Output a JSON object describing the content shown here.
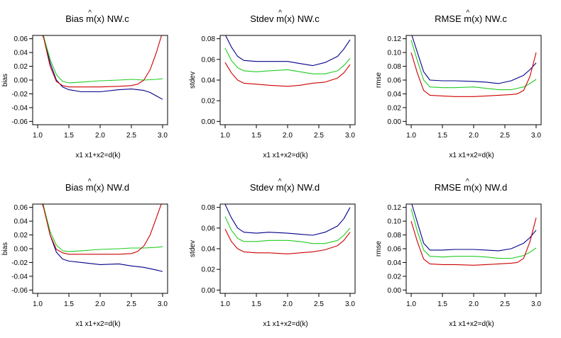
{
  "colors": {
    "blue": "#00008b",
    "green": "#22cc22",
    "red": "#cc0000",
    "axis": "#000000"
  },
  "chart_data": [
    {
      "type": "line",
      "title": {
        "prefix": "Bias",
        "m": "m",
        "x": "(x)",
        "method": "NW.c"
      },
      "xlabel": "x1    x1+x2=d(k)",
      "ylabel": "bias",
      "xlim": [
        1.0,
        3.0
      ],
      "ylim": [
        -0.06,
        0.06
      ],
      "xticks": [
        1.0,
        1.5,
        2.0,
        2.5,
        3.0
      ],
      "xtick_labels": [
        "1.0",
        "1.5",
        "2.0",
        "2.5",
        "3.0"
      ],
      "yticks": [
        -0.06,
        -0.04,
        -0.02,
        0.0,
        0.02,
        0.04,
        0.06
      ],
      "ytick_labels": [
        "-0.06",
        "-0.04",
        "-0.02",
        "0.00",
        "0.02",
        "0.04",
        "0.06"
      ],
      "series": [
        {
          "name": "blue",
          "x": [
            1.0,
            1.1,
            1.2,
            1.3,
            1.4,
            1.5,
            1.7,
            2.0,
            2.3,
            2.5,
            2.7,
            2.8,
            2.9,
            3.0
          ],
          "y": [
            0.1,
            0.062,
            0.025,
            0.0,
            -0.01,
            -0.014,
            -0.017,
            -0.017,
            -0.014,
            -0.013,
            -0.015,
            -0.018,
            -0.023,
            -0.028
          ]
        },
        {
          "name": "green",
          "x": [
            1.0,
            1.1,
            1.2,
            1.3,
            1.4,
            1.5,
            1.7,
            2.0,
            2.3,
            2.5,
            2.7,
            2.9,
            3.0
          ],
          "y": [
            0.09,
            0.062,
            0.03,
            0.008,
            -0.002,
            -0.004,
            -0.003,
            -0.001,
            0.0,
            0.001,
            0.0,
            0.001,
            0.002
          ]
        },
        {
          "name": "red",
          "x": [
            1.0,
            1.1,
            1.2,
            1.3,
            1.4,
            1.5,
            1.7,
            2.0,
            2.3,
            2.5,
            2.6,
            2.7,
            2.8,
            2.9,
            3.0
          ],
          "y": [
            0.085,
            0.06,
            0.02,
            -0.002,
            -0.008,
            -0.01,
            -0.01,
            -0.01,
            -0.009,
            -0.008,
            -0.006,
            0.0,
            0.015,
            0.04,
            0.07
          ]
        }
      ]
    },
    {
      "type": "line",
      "title": {
        "prefix": "Stdev",
        "m": "m",
        "x": "(x)",
        "method": "NW.c"
      },
      "xlabel": "x1    x1+x2=d(k)",
      "ylabel": "stdev",
      "xlim": [
        1.0,
        3.0
      ],
      "ylim": [
        0.0,
        0.08
      ],
      "xticks": [
        1.0,
        1.5,
        2.0,
        2.5,
        3.0
      ],
      "xtick_labels": [
        "1.0",
        "1.5",
        "2.0",
        "2.5",
        "3.0"
      ],
      "yticks": [
        0.0,
        0.02,
        0.04,
        0.06,
        0.08
      ],
      "ytick_labels": [
        "0.00",
        "0.02",
        "0.04",
        "0.06",
        "0.08"
      ],
      "series": [
        {
          "name": "blue",
          "x": [
            1.0,
            1.1,
            1.2,
            1.3,
            1.5,
            1.7,
            2.0,
            2.2,
            2.4,
            2.6,
            2.8,
            2.9,
            3.0
          ],
          "y": [
            0.084,
            0.072,
            0.063,
            0.059,
            0.058,
            0.058,
            0.058,
            0.056,
            0.054,
            0.057,
            0.063,
            0.07,
            0.079
          ]
        },
        {
          "name": "green",
          "x": [
            1.0,
            1.1,
            1.2,
            1.3,
            1.5,
            1.7,
            2.0,
            2.2,
            2.4,
            2.6,
            2.8,
            2.9,
            3.0
          ],
          "y": [
            0.071,
            0.059,
            0.052,
            0.049,
            0.048,
            0.049,
            0.05,
            0.048,
            0.046,
            0.046,
            0.049,
            0.054,
            0.061
          ]
        },
        {
          "name": "red",
          "x": [
            1.0,
            1.1,
            1.2,
            1.3,
            1.5,
            1.7,
            2.0,
            2.2,
            2.4,
            2.6,
            2.8,
            2.9,
            3.0
          ],
          "y": [
            0.057,
            0.047,
            0.04,
            0.037,
            0.036,
            0.035,
            0.034,
            0.035,
            0.037,
            0.038,
            0.042,
            0.047,
            0.055
          ]
        }
      ]
    },
    {
      "type": "line",
      "title": {
        "prefix": "RMSE",
        "m": "m",
        "x": "(x)",
        "method": "NW.c"
      },
      "xlabel": "x1    x1+x2=d(k)",
      "ylabel": "rmse",
      "xlim": [
        1.0,
        3.0
      ],
      "ylim": [
        0.0,
        0.12
      ],
      "xticks": [
        1.0,
        1.5,
        2.0,
        2.5,
        3.0
      ],
      "xtick_labels": [
        "1.0",
        "1.5",
        "2.0",
        "2.5",
        "3.0"
      ],
      "yticks": [
        0.0,
        0.02,
        0.04,
        0.06,
        0.08,
        0.1,
        0.12
      ],
      "ytick_labels": [
        "0.00",
        "0.02",
        "0.04",
        "0.06",
        "0.08",
        "0.10",
        "0.12"
      ],
      "series": [
        {
          "name": "blue",
          "x": [
            1.0,
            1.1,
            1.2,
            1.3,
            1.5,
            1.7,
            2.0,
            2.2,
            2.4,
            2.6,
            2.8,
            2.9,
            3.0
          ],
          "y": [
            0.128,
            0.1,
            0.072,
            0.06,
            0.059,
            0.059,
            0.058,
            0.057,
            0.055,
            0.059,
            0.067,
            0.075,
            0.085
          ]
        },
        {
          "name": "green",
          "x": [
            1.0,
            1.1,
            1.2,
            1.3,
            1.5,
            1.7,
            2.0,
            2.2,
            2.4,
            2.6,
            2.8,
            2.9,
            3.0
          ],
          "y": [
            0.118,
            0.088,
            0.06,
            0.05,
            0.049,
            0.049,
            0.05,
            0.048,
            0.046,
            0.046,
            0.05,
            0.055,
            0.061
          ]
        },
        {
          "name": "red",
          "x": [
            1.0,
            1.1,
            1.2,
            1.3,
            1.5,
            1.7,
            2.0,
            2.2,
            2.4,
            2.6,
            2.7,
            2.8,
            2.9,
            3.0
          ],
          "y": [
            0.1,
            0.07,
            0.045,
            0.038,
            0.037,
            0.036,
            0.036,
            0.037,
            0.038,
            0.039,
            0.04,
            0.045,
            0.065,
            0.1
          ]
        }
      ]
    },
    {
      "type": "line",
      "title": {
        "prefix": "Bias",
        "m": "m",
        "x": "(x)",
        "method": "NW.d"
      },
      "xlabel": "x1    x1+x2=d(k)",
      "ylabel": "bias",
      "xlim": [
        1.0,
        3.0
      ],
      "ylim": [
        -0.06,
        0.06
      ],
      "xticks": [
        1.0,
        1.5,
        2.0,
        2.5,
        3.0
      ],
      "xtick_labels": [
        "1.0",
        "1.5",
        "2.0",
        "2.5",
        "3.0"
      ],
      "yticks": [
        -0.06,
        -0.04,
        -0.02,
        0.0,
        0.02,
        0.04,
        0.06
      ],
      "ytick_labels": [
        "-0.06",
        "-0.04",
        "-0.02",
        "0.00",
        "0.02",
        "0.04",
        "0.06"
      ],
      "series": [
        {
          "name": "blue",
          "x": [
            1.0,
            1.1,
            1.2,
            1.3,
            1.4,
            1.5,
            1.7,
            2.0,
            2.3,
            2.5,
            2.7,
            2.9,
            3.0
          ],
          "y": [
            0.1,
            0.06,
            0.02,
            -0.005,
            -0.015,
            -0.018,
            -0.02,
            -0.023,
            -0.022,
            -0.025,
            -0.027,
            -0.031,
            -0.033
          ]
        },
        {
          "name": "green",
          "x": [
            1.0,
            1.1,
            1.2,
            1.3,
            1.4,
            1.5,
            1.7,
            2.0,
            2.3,
            2.5,
            2.7,
            2.9,
            3.0
          ],
          "y": [
            0.09,
            0.06,
            0.025,
            0.005,
            -0.003,
            -0.004,
            -0.003,
            -0.001,
            0.0,
            0.001,
            0.001,
            0.002,
            0.003
          ]
        },
        {
          "name": "red",
          "x": [
            1.0,
            1.1,
            1.2,
            1.3,
            1.4,
            1.5,
            1.7,
            2.0,
            2.3,
            2.5,
            2.6,
            2.7,
            2.8,
            2.9,
            3.0
          ],
          "y": [
            0.085,
            0.058,
            0.02,
            -0.001,
            -0.006,
            -0.008,
            -0.008,
            -0.008,
            -0.008,
            -0.007,
            -0.004,
            0.004,
            0.02,
            0.045,
            0.07
          ]
        }
      ]
    },
    {
      "type": "line",
      "title": {
        "prefix": "Stdev",
        "m": "m",
        "x": "(x)",
        "method": "NW.d"
      },
      "xlabel": "x1    x1+x2=d(k)",
      "ylabel": "stdev",
      "xlim": [
        1.0,
        3.0
      ],
      "ylim": [
        0.0,
        0.08
      ],
      "xticks": [
        1.0,
        1.5,
        2.0,
        2.5,
        3.0
      ],
      "xtick_labels": [
        "1.0",
        "1.5",
        "2.0",
        "2.5",
        "3.0"
      ],
      "yticks": [
        0.0,
        0.02,
        0.04,
        0.06,
        0.08
      ],
      "ytick_labels": [
        "0.00",
        "0.02",
        "0.04",
        "0.06",
        "0.08"
      ],
      "series": [
        {
          "name": "blue",
          "x": [
            1.0,
            1.1,
            1.2,
            1.3,
            1.5,
            1.7,
            2.0,
            2.2,
            2.4,
            2.6,
            2.8,
            2.9,
            3.0
          ],
          "y": [
            0.083,
            0.07,
            0.06,
            0.056,
            0.055,
            0.056,
            0.055,
            0.054,
            0.053,
            0.056,
            0.062,
            0.069,
            0.08
          ]
        },
        {
          "name": "green",
          "x": [
            1.0,
            1.1,
            1.2,
            1.3,
            1.5,
            1.7,
            2.0,
            2.2,
            2.4,
            2.6,
            2.8,
            2.9,
            3.0
          ],
          "y": [
            0.071,
            0.058,
            0.05,
            0.047,
            0.047,
            0.048,
            0.048,
            0.047,
            0.045,
            0.045,
            0.048,
            0.053,
            0.06
          ]
        },
        {
          "name": "red",
          "x": [
            1.0,
            1.1,
            1.2,
            1.3,
            1.5,
            1.7,
            2.0,
            2.2,
            2.4,
            2.6,
            2.8,
            2.9,
            3.0
          ],
          "y": [
            0.059,
            0.047,
            0.04,
            0.037,
            0.036,
            0.036,
            0.035,
            0.036,
            0.037,
            0.039,
            0.043,
            0.048,
            0.056
          ]
        }
      ]
    },
    {
      "type": "line",
      "title": {
        "prefix": "RMSE",
        "m": "m",
        "x": "(x)",
        "method": "NW.d"
      },
      "xlabel": "x1    x1+x2=d(k)",
      "ylabel": "rmse",
      "xlim": [
        1.0,
        3.0
      ],
      "ylim": [
        0.0,
        0.12
      ],
      "xticks": [
        1.0,
        1.5,
        2.0,
        2.5,
        3.0
      ],
      "xtick_labels": [
        "1.0",
        "1.5",
        "2.0",
        "2.5",
        "3.0"
      ],
      "yticks": [
        0.0,
        0.02,
        0.04,
        0.06,
        0.08,
        0.1,
        0.12
      ],
      "ytick_labels": [
        "0.00",
        "0.02",
        "0.04",
        "0.06",
        "0.08",
        "0.10",
        "0.12"
      ],
      "series": [
        {
          "name": "blue",
          "x": [
            1.0,
            1.1,
            1.2,
            1.3,
            1.5,
            1.7,
            2.0,
            2.2,
            2.4,
            2.6,
            2.8,
            2.9,
            3.0
          ],
          "y": [
            0.128,
            0.098,
            0.068,
            0.058,
            0.058,
            0.059,
            0.059,
            0.058,
            0.057,
            0.06,
            0.068,
            0.076,
            0.087
          ]
        },
        {
          "name": "green",
          "x": [
            1.0,
            1.1,
            1.2,
            1.3,
            1.5,
            1.7,
            2.0,
            2.2,
            2.4,
            2.6,
            2.8,
            2.9,
            3.0
          ],
          "y": [
            0.118,
            0.085,
            0.058,
            0.049,
            0.048,
            0.049,
            0.049,
            0.048,
            0.046,
            0.046,
            0.05,
            0.055,
            0.061
          ]
        },
        {
          "name": "red",
          "x": [
            1.0,
            1.1,
            1.2,
            1.3,
            1.5,
            1.7,
            2.0,
            2.2,
            2.4,
            2.6,
            2.7,
            2.8,
            2.9,
            3.0
          ],
          "y": [
            0.1,
            0.07,
            0.045,
            0.038,
            0.037,
            0.037,
            0.036,
            0.037,
            0.038,
            0.039,
            0.04,
            0.046,
            0.07,
            0.105
          ]
        }
      ]
    }
  ]
}
